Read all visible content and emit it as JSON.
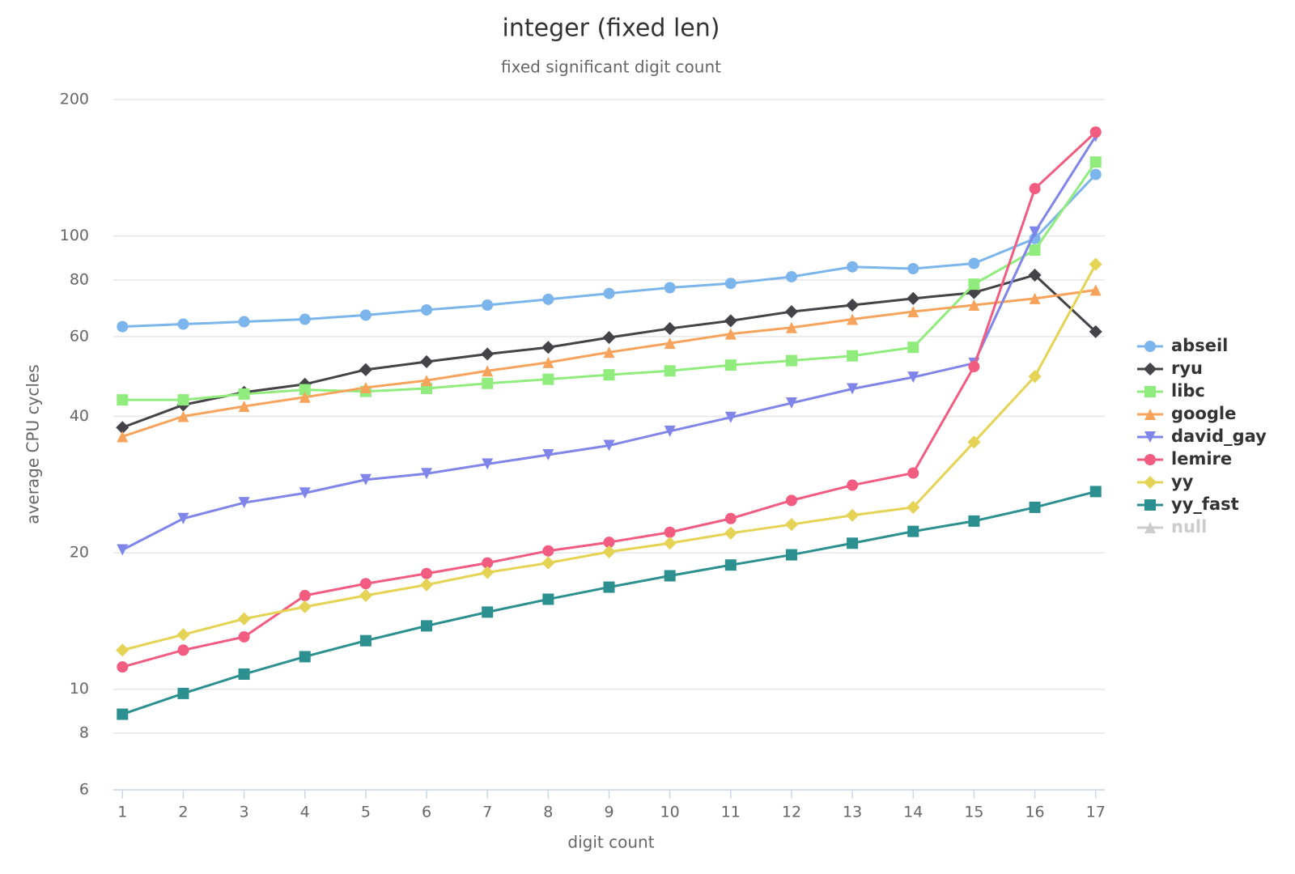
{
  "chart_data": {
    "type": "line",
    "title": "integer (fixed len)",
    "subtitle": "fixed significant digit count",
    "xlabel": "digit count",
    "ylabel": "average CPU cycles",
    "x": [
      1,
      2,
      3,
      4,
      5,
      6,
      7,
      8,
      9,
      10,
      11,
      12,
      13,
      14,
      15,
      16,
      17
    ],
    "xlim": [
      0.85,
      17.15
    ],
    "xticks": [
      1,
      2,
      3,
      4,
      5,
      6,
      7,
      8,
      9,
      10,
      11,
      12,
      13,
      14,
      15,
      16,
      17
    ],
    "yscale": "log",
    "ylim": [
      6,
      200
    ],
    "yticks": [
      6,
      8,
      10,
      20,
      40,
      60,
      80,
      100,
      200
    ],
    "grid": true,
    "legend": "right",
    "series": [
      {
        "name": "abseil",
        "color": "#7cb5ec",
        "marker": "circle",
        "values": [
          63.1,
          63.9,
          64.7,
          65.5,
          66.9,
          68.7,
          70.4,
          72.5,
          74.7,
          76.9,
          78.6,
          81.3,
          85.5,
          84.7,
          87.0,
          98.7,
          136.7
        ]
      },
      {
        "name": "ryu",
        "color": "#434348",
        "marker": "diamond",
        "values": [
          37.8,
          42.4,
          45.2,
          47.1,
          50.7,
          52.8,
          54.9,
          56.8,
          59.7,
          62.5,
          65.0,
          68.1,
          70.4,
          72.8,
          75.0,
          82.0,
          61.5
        ]
      },
      {
        "name": "libc",
        "color": "#90ed7d",
        "marker": "square",
        "values": [
          43.5,
          43.5,
          44.8,
          45.8,
          45.4,
          46.1,
          47.3,
          48.3,
          49.4,
          50.4,
          51.9,
          53.1,
          54.4,
          56.8,
          78.3,
          93.1,
          145.6
        ]
      },
      {
        "name": "google",
        "color": "#f7a35c",
        "marker": "triangle",
        "values": [
          36.1,
          40.0,
          42.1,
          44.1,
          46.3,
          48.0,
          50.4,
          52.6,
          55.4,
          58.0,
          60.8,
          62.8,
          65.5,
          68.1,
          70.4,
          72.8,
          76.0
        ]
      },
      {
        "name": "david_gay",
        "color": "#8085e9",
        "marker": "triangle-down",
        "values": [
          20.3,
          23.8,
          25.8,
          27.1,
          29.0,
          29.9,
          31.4,
          32.9,
          34.5,
          37.1,
          39.8,
          42.8,
          46.0,
          48.8,
          52.4,
          102,
          166
        ]
      },
      {
        "name": "lemire",
        "color": "#f15c80",
        "marker": "circle",
        "values": [
          11.2,
          12.2,
          13.05,
          16.1,
          17.1,
          18.0,
          19.0,
          20.2,
          21.1,
          22.2,
          23.8,
          26.1,
          28.2,
          30.0,
          51.5,
          127.2,
          169.5
        ]
      },
      {
        "name": "yy",
        "color": "#e4d354",
        "marker": "diamond",
        "values": [
          12.2,
          13.2,
          14.3,
          15.2,
          16.1,
          17.0,
          18.1,
          19.0,
          20.1,
          21.0,
          22.1,
          23.1,
          24.2,
          25.2,
          35.1,
          49.0,
          86.6
        ]
      },
      {
        "name": "yy_fast",
        "color": "#2b908f",
        "marker": "square",
        "values": [
          8.81,
          9.79,
          10.8,
          11.8,
          12.8,
          13.8,
          14.8,
          15.8,
          16.8,
          17.8,
          18.8,
          19.8,
          21.0,
          22.3,
          23.5,
          25.2,
          27.3
        ]
      },
      {
        "name": "null",
        "color": "#cccccc",
        "marker": "triangle",
        "hidden": true,
        "values": [
          null,
          null,
          null,
          null,
          null,
          null,
          null,
          null,
          null,
          null,
          null,
          null,
          null,
          null,
          null,
          null,
          null
        ]
      }
    ]
  }
}
